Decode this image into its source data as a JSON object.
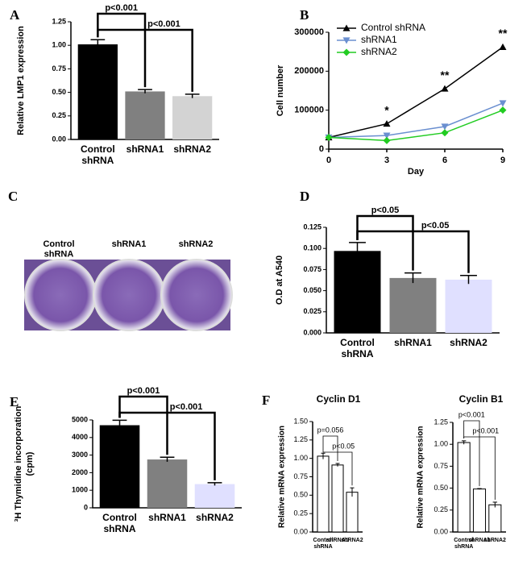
{
  "chart_data": [
    {
      "type": "bar",
      "panel": "A",
      "ylabel": "Relative LMP1 expression",
      "categories": [
        "Control shRNA",
        "shRNA1",
        "shRNA2"
      ],
      "values": [
        1.01,
        0.51,
        0.46
      ],
      "errors": [
        0.05,
        0.02,
        0.02
      ],
      "colors": [
        "#000000",
        "#808080",
        "#d3d3d3"
      ],
      "outline": false,
      "ylim": [
        0,
        1.25
      ],
      "yticks": [
        {
          "value": 0,
          "label": "0.00"
        },
        {
          "value": 0.25,
          "label": "0.25"
        },
        {
          "value": 0.5,
          "label": "0.50"
        },
        {
          "value": 0.75,
          "label": "0.75"
        },
        {
          "value": 1,
          "label": "1.00"
        },
        {
          "value": 1.25,
          "label": "1.25"
        }
      ],
      "brackets": [
        {
          "from": 0,
          "to": 1,
          "label": "p<0.001"
        },
        {
          "from": 0,
          "to": 2,
          "label": "p<0.001"
        }
      ]
    },
    {
      "type": "line",
      "panel": "B",
      "xlabel": "Day",
      "ylabel": "Cell number",
      "x": [
        0,
        3,
        6,
        9
      ],
      "xlim": [
        0,
        9
      ],
      "xticks": [
        0,
        3,
        6,
        9
      ],
      "ylim": [
        0,
        300000
      ],
      "yticks": [
        0,
        100000,
        200000,
        300000
      ],
      "series": [
        {
          "name": "Control shRNA",
          "color": "#000000",
          "marker": "triangle-up",
          "values": [
            30000,
            65000,
            155000,
            262000
          ]
        },
        {
          "name": "shRNA1",
          "color": "#6a8fd0",
          "marker": "triangle-down",
          "values": [
            30000,
            35000,
            58000,
            118000
          ]
        },
        {
          "name": "shRNA2",
          "color": "#22cc22",
          "marker": "diamond",
          "values": [
            30000,
            22000,
            42000,
            100000
          ]
        }
      ],
      "annotations": [
        {
          "text": "*",
          "x": 3
        },
        {
          "text": "**",
          "x": 6
        },
        {
          "text": "**",
          "x": 9
        }
      ]
    },
    {
      "type": "bar",
      "panel": "D",
      "ylabel": "O.D at A540",
      "categories": [
        "Control shRNA",
        "shRNA1",
        "shRNA2"
      ],
      "values": [
        0.097,
        0.065,
        0.063
      ],
      "errors": [
        0.01,
        0.006,
        0.005
      ],
      "colors": [
        "#000000",
        "#808080",
        "#e0e0ff"
      ],
      "outline": false,
      "ylim": [
        0,
        0.125
      ],
      "yticks": [
        {
          "value": 0,
          "label": "0.000"
        },
        {
          "value": 0.025,
          "label": "0.025"
        },
        {
          "value": 0.05,
          "label": "0.050"
        },
        {
          "value": 0.075,
          "label": "0.075"
        },
        {
          "value": 0.1,
          "label": "0.100"
        },
        {
          "value": 0.125,
          "label": "0.125"
        }
      ],
      "brackets": [
        {
          "from": 0,
          "to": 1,
          "label": "p<0.05"
        },
        {
          "from": 0,
          "to": 2,
          "label": "p<0.05"
        }
      ]
    },
    {
      "type": "bar",
      "panel": "E",
      "ylabel": [
        "³H Thymidine incorporation",
        "(cpm)"
      ],
      "categories": [
        "Control shRNA",
        "shRNA1",
        "shRNA2"
      ],
      "values": [
        4700,
        2750,
        1350
      ],
      "errors": [
        280,
        130,
        80
      ],
      "colors": [
        "#000000",
        "#808080",
        "#e0e0ff"
      ],
      "outline": false,
      "ylim": [
        0,
        5000
      ],
      "yticks": [
        0,
        1000,
        2000,
        3000,
        4000,
        5000
      ],
      "brackets": [
        {
          "from": 0,
          "to": 1,
          "label": "p<0.001"
        },
        {
          "from": 0,
          "to": 2,
          "label": "p<0.001"
        }
      ]
    },
    {
      "type": "bar",
      "panel": "F",
      "title": "Cyclin D1",
      "ylabel": "Relative mRNA expression",
      "categories": [
        "Control shRNA",
        "shRNA1",
        "shRNA2"
      ],
      "values": [
        1.03,
        0.91,
        0.54
      ],
      "errors": [
        0.04,
        0.02,
        0.06
      ],
      "colors": [
        "#ffffff",
        "#ffffff",
        "#ffffff"
      ],
      "outline": true,
      "ylim": [
        0,
        1.5
      ],
      "yticks": [
        {
          "value": 0,
          "label": "0.00"
        },
        {
          "value": 0.25,
          "label": "0.25"
        },
        {
          "value": 0.5,
          "label": "0.50"
        },
        {
          "value": 0.75,
          "label": "0.75"
        },
        {
          "value": 1,
          "label": "1.00"
        },
        {
          "value": 1.25,
          "label": "1.25"
        },
        {
          "value": 1.5,
          "label": "1.50"
        }
      ],
      "brackets": [
        {
          "from": 0,
          "to": 1,
          "label": "p=0.056"
        },
        {
          "from": 0,
          "to": 2,
          "label": "p<0.05"
        }
      ]
    },
    {
      "type": "bar",
      "title": "Cyclin B1",
      "ylabel": "Relative mRNA expression",
      "categories": [
        "Control shRNA",
        "shRNA1",
        "shRNA2"
      ],
      "values": [
        1.02,
        0.49,
        0.31
      ],
      "errors": [
        0.02,
        0.005,
        0.03
      ],
      "colors": [
        "#ffffff",
        "#ffffff",
        "#ffffff"
      ],
      "outline": true,
      "ylim": [
        0,
        1.25
      ],
      "yticks": [
        {
          "value": 0,
          "label": "0.00"
        },
        {
          "value": 0.25,
          "label": "0.25"
        },
        {
          "value": 0.5,
          "label": "0.50"
        },
        {
          "value": 0.75,
          "label": "0.75"
        },
        {
          "value": 1,
          "label": "1.00"
        },
        {
          "value": 1.25,
          "label": "1.25"
        }
      ],
      "brackets": [
        {
          "from": 0,
          "to": 1,
          "label": "p<0.001"
        },
        {
          "from": 0,
          "to": 2,
          "label": "p<0.001"
        }
      ]
    }
  ],
  "photo": {
    "panel": "C",
    "labels": [
      "Control shRNA",
      "shRNA1",
      "shRNA2"
    ]
  }
}
